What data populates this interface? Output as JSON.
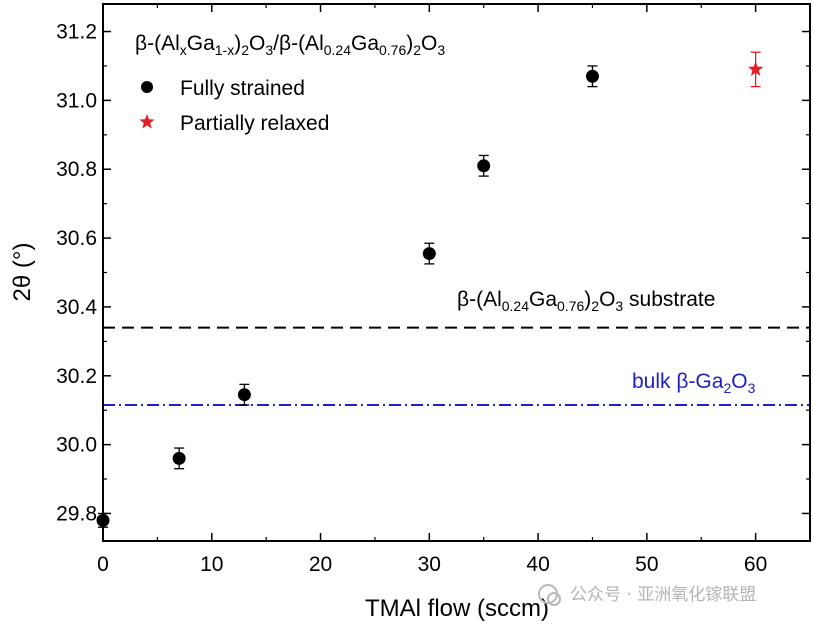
{
  "chart_data": {
    "type": "scatter",
    "title": "β-(AlxGa1-x)2O3/β-(Al0.24Ga0.76)2O3",
    "title_parts": {
      "p1": "β-(Al",
      "s1": "x",
      "p2": "Ga",
      "s2": "1-x",
      "p3": ")",
      "s3": "2",
      "p4": "O",
      "s4": "3",
      "p5": "/β-(Al",
      "s5": "0.24",
      "p6": "Ga",
      "s6": "0.76",
      "p7": ")",
      "s7": "2",
      "p8": "O",
      "s8": "3"
    },
    "xlabel": "TMAl flow (sccm)",
    "ylabel": "2θ (°)",
    "xlim": [
      0,
      65
    ],
    "ylim": [
      29.72,
      31.28
    ],
    "xticks": [
      0,
      10,
      20,
      30,
      40,
      50,
      60
    ],
    "yticks": [
      29.8,
      30.0,
      30.2,
      30.4,
      30.6,
      30.8,
      31.0,
      31.2
    ],
    "ytick_labels": [
      "29.8",
      "30.0",
      "30.2",
      "30.4",
      "30.6",
      "30.8",
      "31.0",
      "31.2"
    ],
    "legend_position": "top-left",
    "series": [
      {
        "name": "Fully strained",
        "marker": "circle",
        "color": "#000000",
        "points": [
          {
            "x": 0,
            "y": 29.78,
            "err": 0.02
          },
          {
            "x": 7,
            "y": 29.96,
            "err": 0.03
          },
          {
            "x": 13,
            "y": 30.145,
            "err": 0.03
          },
          {
            "x": 30,
            "y": 30.555,
            "err": 0.03
          },
          {
            "x": 35,
            "y": 30.81,
            "err": 0.03
          },
          {
            "x": 45,
            "y": 31.07,
            "err": 0.03
          }
        ]
      },
      {
        "name": "Partially relaxed",
        "marker": "star",
        "color": "#e0202a",
        "points": [
          {
            "x": 60,
            "y": 31.09,
            "err": 0.05
          }
        ]
      }
    ],
    "reference_lines": [
      {
        "name": "substrate",
        "y": 30.34,
        "style": "dashed",
        "color": "#000000",
        "label": "β-(Al0.24Ga0.76)2O3 substrate",
        "label_parts": {
          "p1": "β-(Al",
          "s1": "0.24",
          "p2": "Ga",
          "s2": "0.76",
          "p3": ")",
          "s3": "2",
          "p4": "O",
          "s4": "3",
          "p5": " substrate"
        }
      },
      {
        "name": "bulk",
        "y": 30.115,
        "style": "dashdot",
        "color": "#2020c8",
        "label": "bulk β-Ga2O3",
        "label_parts": {
          "p1": "bulk β-Ga",
          "s1": "2",
          "p2": "O",
          "s2": "3"
        }
      }
    ]
  },
  "watermark": {
    "text": "公众号 · 亚洲氧化镓联盟"
  }
}
